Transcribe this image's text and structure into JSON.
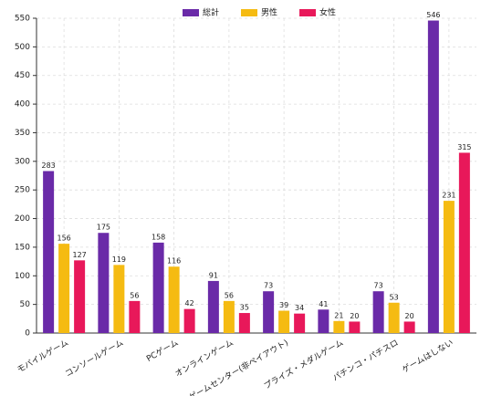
{
  "chart_data": {
    "type": "bar",
    "categories": [
      "モバイルゲーム",
      "コンソールゲーム",
      "PCゲーム",
      "オンラインゲーム",
      "ゲームセンター(非ペイアウト)",
      "プライズ・メダルゲーム",
      "パチンコ・パチスロ",
      "ゲームはしない"
    ],
    "series": [
      {
        "name": "総計",
        "color": "#6a2aa8",
        "values": [
          283,
          175,
          158,
          91,
          73,
          41,
          73,
          546
        ]
      },
      {
        "name": "男性",
        "color": "#f5bb12",
        "values": [
          156,
          119,
          116,
          56,
          39,
          21,
          53,
          231
        ]
      },
      {
        "name": "女性",
        "color": "#e8185a",
        "values": [
          127,
          56,
          42,
          35,
          34,
          20,
          20,
          315
        ]
      }
    ],
    "ylim": [
      0,
      550
    ],
    "yticks": [
      0,
      50,
      100,
      150,
      200,
      250,
      300,
      350,
      400,
      450,
      500,
      550
    ],
    "grid": true,
    "legend": "top"
  }
}
